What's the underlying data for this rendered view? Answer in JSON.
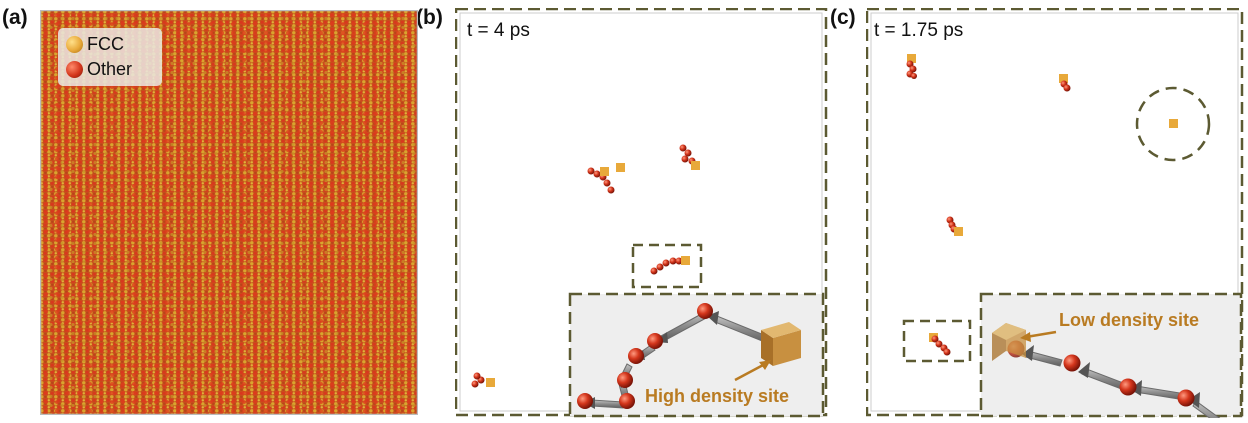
{
  "panels": {
    "a": {
      "label": "(a)"
    },
    "b": {
      "label": "(b)",
      "time": "t = 4 ps",
      "callout": "High density site"
    },
    "c": {
      "label": "(c)",
      "time": "t = 1.75 ps",
      "callout": "Low density site"
    }
  },
  "legend": {
    "items": [
      {
        "label": "FCC",
        "color": "#e8a93a"
      },
      {
        "label": "Other",
        "color": "#d4361c"
      }
    ]
  },
  "colors": {
    "fcc": "#e8a93a",
    "other": "#d4361c",
    "frame_dash": "#5c5a32",
    "callout_text": "#b97b22",
    "inset_bg": "#eeeeee",
    "arrow": "#8f8f8f"
  }
}
